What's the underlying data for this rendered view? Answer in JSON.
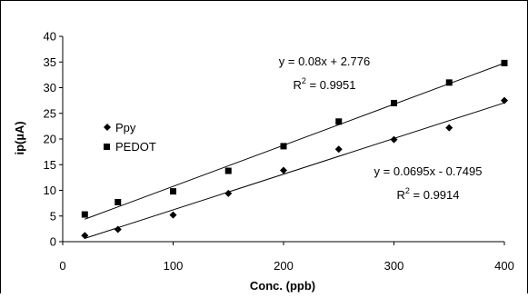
{
  "chart_data": {
    "type": "scatter",
    "xlabel": "Conc. (ppb)",
    "ylabel": "ip(µA)",
    "xlim": [
      0,
      400
    ],
    "ylim": [
      0,
      40
    ],
    "x_ticks": [
      "0",
      "100",
      "200",
      "300",
      "400"
    ],
    "y_ticks": [
      "0",
      "5",
      "10",
      "15",
      "20",
      "25",
      "30",
      "35",
      "40"
    ],
    "grid": false,
    "legend_position": "left-upper-inside",
    "series": [
      {
        "name": "Ppy",
        "marker": "diamond",
        "color": "#000000",
        "x": [
          20,
          50,
          100,
          150,
          200,
          250,
          300,
          350,
          400
        ],
        "y": [
          1.2,
          2.4,
          5.2,
          9.4,
          13.9,
          18.0,
          19.9,
          22.2,
          27.5
        ],
        "trendline": {
          "slope": 0.0695,
          "intercept": -0.7495
        },
        "equation": "y = 0.0695x - 0.7495",
        "r2_label": "R",
        "r2_sup": "2",
        "r2_value": " = 0.9914"
      },
      {
        "name": "PEDOT",
        "marker": "square",
        "color": "#000000",
        "x": [
          20,
          50,
          100,
          150,
          200,
          250,
          300,
          350,
          400
        ],
        "y": [
          5.3,
          7.7,
          9.8,
          13.8,
          18.6,
          23.4,
          27.0,
          31.0,
          34.8
        ],
        "trendline": {
          "slope": 0.08,
          "intercept": 2.776
        },
        "equation": "y = 0.08x + 2.776",
        "r2_label": "R",
        "r2_sup": "2",
        "r2_value": " = 0.9951"
      }
    ]
  }
}
